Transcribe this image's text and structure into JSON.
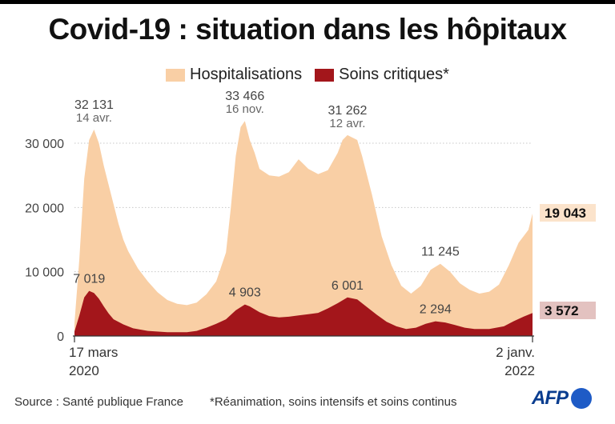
{
  "title": "Covid-19 : situation dans les hôpitaux",
  "legend": [
    {
      "label": "Hospitalisations",
      "color": "#f9cfa5"
    },
    {
      "label": "Soins critiques*",
      "color": "#a3161b"
    }
  ],
  "footer": {
    "source": "Source : Santé publique France",
    "note": "*Réanimation, soins intensifs et soins continus",
    "logo": "AFP"
  },
  "chart_data": {
    "type": "area",
    "x_start": "17 mars 2020",
    "x_end": "2 janv. 2022",
    "x_tick_labels": [
      {
        "line1": "17 mars",
        "line2": "2020"
      },
      {
        "line1": "2 janv.",
        "line2": "2022"
      }
    ],
    "ylim": [
      0,
      35000
    ],
    "yticks": [
      0,
      10000,
      20000,
      30000
    ],
    "ytick_labels": [
      "0",
      "10 000",
      "20 000",
      "30 000"
    ],
    "grid": true,
    "series": [
      {
        "name": "Hospitalisations",
        "color": "#f9cfa5",
        "points": [
          [
            "2020-03-17",
            2000
          ],
          [
            "2020-03-24",
            12000
          ],
          [
            "2020-03-31",
            24500
          ],
          [
            "2020-04-07",
            30500
          ],
          [
            "2020-04-14",
            32131
          ],
          [
            "2020-04-21",
            30000
          ],
          [
            "2020-04-28",
            26500
          ],
          [
            "2020-05-05",
            23500
          ],
          [
            "2020-05-12",
            20500
          ],
          [
            "2020-05-19",
            17500
          ],
          [
            "2020-05-26",
            15000
          ],
          [
            "2020-06-02",
            13200
          ],
          [
            "2020-06-16",
            10500
          ],
          [
            "2020-06-30",
            8500
          ],
          [
            "2020-07-14",
            6800
          ],
          [
            "2020-07-28",
            5600
          ],
          [
            "2020-08-11",
            5000
          ],
          [
            "2020-08-25",
            4800
          ],
          [
            "2020-09-08",
            5200
          ],
          [
            "2020-09-22",
            6500
          ],
          [
            "2020-10-06",
            8500
          ],
          [
            "2020-10-20",
            13000
          ],
          [
            "2020-10-27",
            20000
          ],
          [
            "2020-11-03",
            28000
          ],
          [
            "2020-11-10",
            32500
          ],
          [
            "2020-11-16",
            33466
          ],
          [
            "2020-11-23",
            30500
          ],
          [
            "2020-11-30",
            28500
          ],
          [
            "2020-12-07",
            26000
          ],
          [
            "2020-12-21",
            25000
          ],
          [
            "2021-01-04",
            24800
          ],
          [
            "2021-01-18",
            25500
          ],
          [
            "2021-02-01",
            27500
          ],
          [
            "2021-02-15",
            26000
          ],
          [
            "2021-03-01",
            25200
          ],
          [
            "2021-03-15",
            25800
          ],
          [
            "2021-03-29",
            28500
          ],
          [
            "2021-04-05",
            30500
          ],
          [
            "2021-04-12",
            31262
          ],
          [
            "2021-04-26",
            30500
          ],
          [
            "2021-05-03",
            28000
          ],
          [
            "2021-05-17",
            22000
          ],
          [
            "2021-05-31",
            15500
          ],
          [
            "2021-06-14",
            11000
          ],
          [
            "2021-06-28",
            7800
          ],
          [
            "2021-07-12",
            6600
          ],
          [
            "2021-07-26",
            7800
          ],
          [
            "2021-08-09",
            10300
          ],
          [
            "2021-08-23",
            11245
          ],
          [
            "2021-09-06",
            10000
          ],
          [
            "2021-09-20",
            8200
          ],
          [
            "2021-10-04",
            7200
          ],
          [
            "2021-10-18",
            6600
          ],
          [
            "2021-11-01",
            6900
          ],
          [
            "2021-11-15",
            8000
          ],
          [
            "2021-11-29",
            11000
          ],
          [
            "2021-12-13",
            14500
          ],
          [
            "2021-12-27",
            16500
          ],
          [
            "2022-01-02",
            19043
          ]
        ]
      },
      {
        "name": "Soins critiques*",
        "color": "#a3161b",
        "points": [
          [
            "2020-03-17",
            700
          ],
          [
            "2020-03-24",
            3200
          ],
          [
            "2020-03-31",
            6000
          ],
          [
            "2020-04-07",
            7019
          ],
          [
            "2020-04-14",
            6700
          ],
          [
            "2020-04-21",
            5800
          ],
          [
            "2020-04-28",
            4600
          ],
          [
            "2020-05-05",
            3500
          ],
          [
            "2020-05-12",
            2600
          ],
          [
            "2020-05-26",
            1800
          ],
          [
            "2020-06-09",
            1200
          ],
          [
            "2020-06-30",
            800
          ],
          [
            "2020-07-28",
            600
          ],
          [
            "2020-08-25",
            600
          ],
          [
            "2020-09-08",
            800
          ],
          [
            "2020-09-22",
            1300
          ],
          [
            "2020-10-06",
            1900
          ],
          [
            "2020-10-20",
            2600
          ],
          [
            "2020-11-03",
            4000
          ],
          [
            "2020-11-16",
            4903
          ],
          [
            "2020-11-23",
            4600
          ],
          [
            "2020-12-07",
            3700
          ],
          [
            "2020-12-21",
            3100
          ],
          [
            "2021-01-04",
            2900
          ],
          [
            "2021-01-18",
            3000
          ],
          [
            "2021-02-01",
            3200
          ],
          [
            "2021-02-15",
            3400
          ],
          [
            "2021-03-01",
            3600
          ],
          [
            "2021-03-15",
            4300
          ],
          [
            "2021-03-29",
            5100
          ],
          [
            "2021-04-12",
            6001
          ],
          [
            "2021-04-26",
            5700
          ],
          [
            "2021-05-10",
            4500
          ],
          [
            "2021-05-24",
            3300
          ],
          [
            "2021-06-07",
            2200
          ],
          [
            "2021-06-21",
            1500
          ],
          [
            "2021-07-05",
            1100
          ],
          [
            "2021-07-19",
            1300
          ],
          [
            "2021-08-02",
            1900
          ],
          [
            "2021-08-16",
            2294
          ],
          [
            "2021-08-30",
            2100
          ],
          [
            "2021-09-13",
            1700
          ],
          [
            "2021-09-27",
            1300
          ],
          [
            "2021-10-11",
            1100
          ],
          [
            "2021-11-01",
            1100
          ],
          [
            "2021-11-22",
            1500
          ],
          [
            "2021-12-06",
            2300
          ],
          [
            "2021-12-20",
            3000
          ],
          [
            "2022-01-02",
            3572
          ]
        ]
      }
    ],
    "annotations": [
      {
        "series": 0,
        "date": "2020-04-14",
        "value": "32 131",
        "date_label": "14 avr."
      },
      {
        "series": 0,
        "date": "2020-11-16",
        "value": "33 466",
        "date_label": "16 nov."
      },
      {
        "series": 0,
        "date": "2021-04-12",
        "value": "31 262",
        "date_label": "12 avr."
      },
      {
        "series": 0,
        "date": "2021-08-23",
        "value": "11 245",
        "date_label": ""
      },
      {
        "series": 1,
        "date": "2020-04-07",
        "value": "7 019",
        "date_label": ""
      },
      {
        "series": 1,
        "date": "2020-11-16",
        "value": "4 903",
        "date_label": ""
      },
      {
        "series": 1,
        "date": "2021-04-12",
        "value": "6 001",
        "date_label": ""
      },
      {
        "series": 1,
        "date": "2021-08-16",
        "value": "2 294",
        "date_label": ""
      }
    ],
    "end_labels": [
      {
        "series": 0,
        "value": "19 043",
        "bg": "#fbe3cb"
      },
      {
        "series": 1,
        "value": "3 572",
        "bg": "#e3c2c0"
      }
    ]
  }
}
